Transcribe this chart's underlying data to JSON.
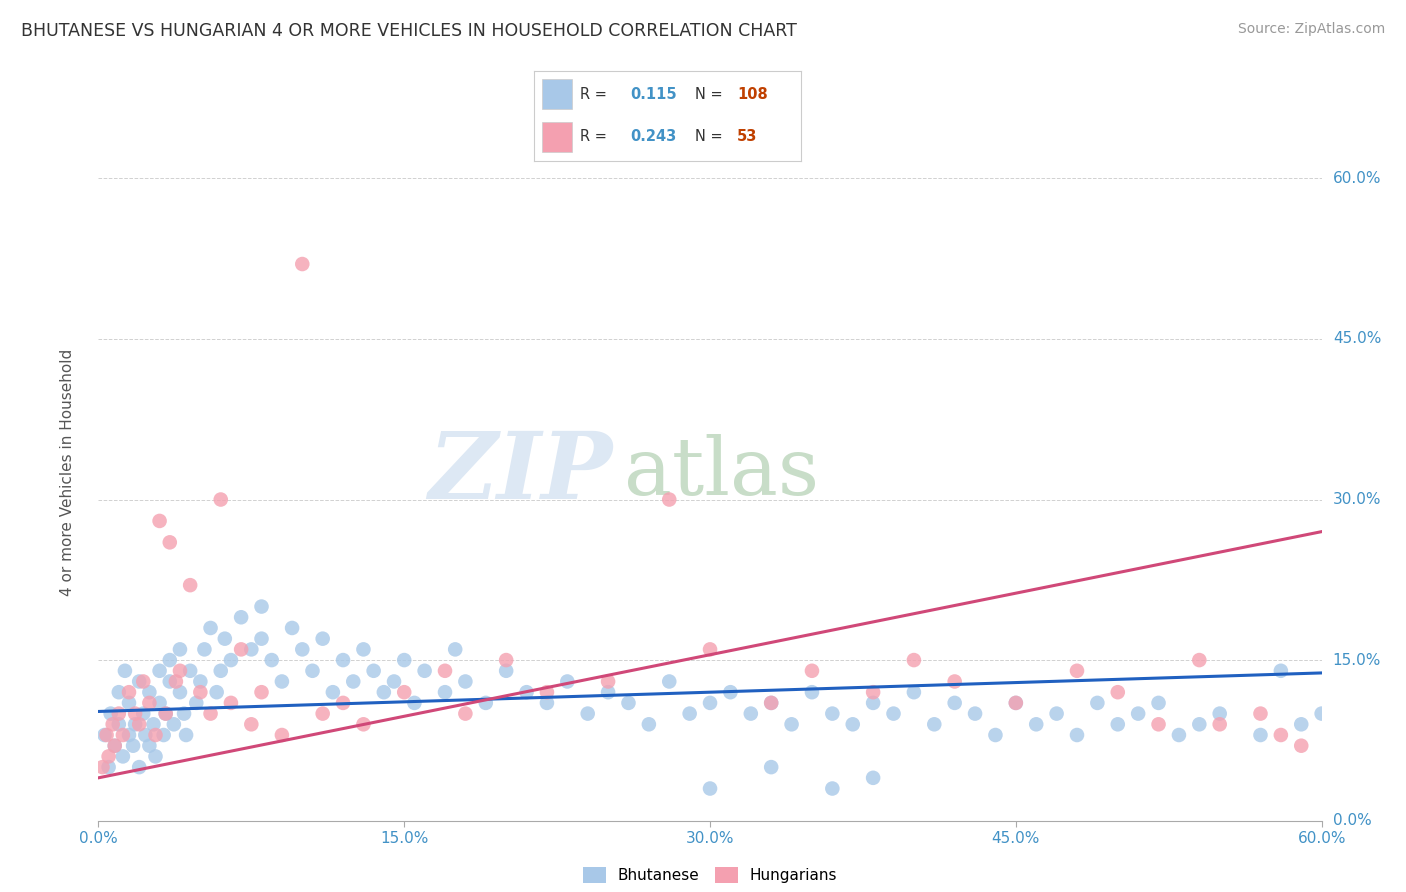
{
  "title": "BHUTANESE VS HUNGARIAN 4 OR MORE VEHICLES IN HOUSEHOLD CORRELATION CHART",
  "source": "Source: ZipAtlas.com",
  "ylabel": "4 or more Vehicles in Household",
  "bhutanese_R": 0.115,
  "bhutanese_N": 108,
  "hungarian_R": 0.243,
  "hungarian_N": 53,
  "blue_color": "#a8c8e8",
  "pink_color": "#f4a0b0",
  "blue_line_color": "#2060c0",
  "pink_line_color": "#d04878",
  "legend_label_blue": "Bhutanese",
  "legend_label_pink": "Hungarians",
  "watermark_zip": "ZIP",
  "watermark_atlas": "atlas",
  "ytick_labels": [
    "0.0%",
    "15.0%",
    "30.0%",
    "45.0%",
    "60.0%"
  ],
  "ytick_values": [
    0,
    15,
    30,
    45,
    60
  ],
  "xtick_labels": [
    "0.0%",
    "15.0%",
    "30.0%",
    "45.0%",
    "60.0%"
  ],
  "xtick_values": [
    0,
    15,
    30,
    45,
    60
  ],
  "blue_trend_x": [
    0,
    60
  ],
  "blue_trend_y": [
    10.2,
    13.8
  ],
  "pink_trend_x": [
    0,
    60
  ],
  "pink_trend_y": [
    4.0,
    27.0
  ],
  "bhutanese_x": [
    0.3,
    0.5,
    0.6,
    0.8,
    1.0,
    1.0,
    1.2,
    1.3,
    1.5,
    1.5,
    1.7,
    1.8,
    2.0,
    2.0,
    2.2,
    2.3,
    2.5,
    2.5,
    2.7,
    2.8,
    3.0,
    3.0,
    3.2,
    3.3,
    3.5,
    3.5,
    3.7,
    4.0,
    4.0,
    4.2,
    4.3,
    4.5,
    4.8,
    5.0,
    5.2,
    5.5,
    5.8,
    6.0,
    6.2,
    6.5,
    7.0,
    7.5,
    8.0,
    8.0,
    8.5,
    9.0,
    9.5,
    10.0,
    10.5,
    11.0,
    11.5,
    12.0,
    12.5,
    13.0,
    13.5,
    14.0,
    14.5,
    15.0,
    15.5,
    16.0,
    17.0,
    17.5,
    18.0,
    19.0,
    20.0,
    21.0,
    22.0,
    23.0,
    24.0,
    25.0,
    26.0,
    27.0,
    28.0,
    29.0,
    30.0,
    31.0,
    32.0,
    33.0,
    34.0,
    35.0,
    36.0,
    37.0,
    38.0,
    39.0,
    40.0,
    41.0,
    42.0,
    43.0,
    44.0,
    45.0,
    46.0,
    47.0,
    48.0,
    49.0,
    50.0,
    51.0,
    52.0,
    53.0,
    54.0,
    55.0,
    57.0,
    58.0,
    59.0,
    60.0,
    30.0,
    33.0,
    36.0,
    38.0
  ],
  "bhutanese_y": [
    8.0,
    5.0,
    10.0,
    7.0,
    9.0,
    12.0,
    6.0,
    14.0,
    8.0,
    11.0,
    7.0,
    9.0,
    5.0,
    13.0,
    10.0,
    8.0,
    12.0,
    7.0,
    9.0,
    6.0,
    11.0,
    14.0,
    8.0,
    10.0,
    13.0,
    15.0,
    9.0,
    12.0,
    16.0,
    10.0,
    8.0,
    14.0,
    11.0,
    13.0,
    16.0,
    18.0,
    12.0,
    14.0,
    17.0,
    15.0,
    19.0,
    16.0,
    17.0,
    20.0,
    15.0,
    13.0,
    18.0,
    16.0,
    14.0,
    17.0,
    12.0,
    15.0,
    13.0,
    16.0,
    14.0,
    12.0,
    13.0,
    15.0,
    11.0,
    14.0,
    12.0,
    16.0,
    13.0,
    11.0,
    14.0,
    12.0,
    11.0,
    13.0,
    10.0,
    12.0,
    11.0,
    9.0,
    13.0,
    10.0,
    11.0,
    12.0,
    10.0,
    11.0,
    9.0,
    12.0,
    10.0,
    9.0,
    11.0,
    10.0,
    12.0,
    9.0,
    11.0,
    10.0,
    8.0,
    11.0,
    9.0,
    10.0,
    8.0,
    11.0,
    9.0,
    10.0,
    11.0,
    8.0,
    9.0,
    10.0,
    8.0,
    14.0,
    9.0,
    10.0,
    3.0,
    5.0,
    3.0,
    4.0
  ],
  "hungarian_x": [
    0.2,
    0.4,
    0.5,
    0.7,
    0.8,
    1.0,
    1.2,
    1.5,
    1.8,
    2.0,
    2.2,
    2.5,
    2.8,
    3.0,
    3.3,
    3.5,
    3.8,
    4.0,
    4.5,
    5.0,
    5.5,
    6.0,
    6.5,
    7.0,
    7.5,
    8.0,
    9.0,
    10.0,
    11.0,
    12.0,
    13.0,
    15.0,
    17.0,
    18.0,
    20.0,
    22.0,
    25.0,
    28.0,
    30.0,
    33.0,
    35.0,
    38.0,
    40.0,
    42.0,
    45.0,
    48.0,
    50.0,
    52.0,
    54.0,
    55.0,
    57.0,
    58.0,
    59.0
  ],
  "hungarian_y": [
    5.0,
    8.0,
    6.0,
    9.0,
    7.0,
    10.0,
    8.0,
    12.0,
    10.0,
    9.0,
    13.0,
    11.0,
    8.0,
    28.0,
    10.0,
    26.0,
    13.0,
    14.0,
    22.0,
    12.0,
    10.0,
    30.0,
    11.0,
    16.0,
    9.0,
    12.0,
    8.0,
    52.0,
    10.0,
    11.0,
    9.0,
    12.0,
    14.0,
    10.0,
    15.0,
    12.0,
    13.0,
    30.0,
    16.0,
    11.0,
    14.0,
    12.0,
    15.0,
    13.0,
    11.0,
    14.0,
    12.0,
    9.0,
    15.0,
    9.0,
    10.0,
    8.0,
    7.0
  ]
}
